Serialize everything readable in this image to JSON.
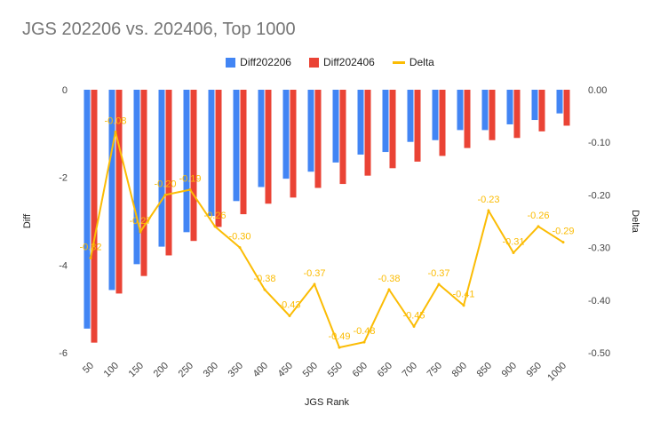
{
  "chart_data": {
    "type": "bar",
    "title": "JGS 202206 vs. 202406, Top 1000",
    "xlabel": "JGS Rank",
    "ylabel": "Diff",
    "y2label": "Delta",
    "ylim": [
      -6,
      0
    ],
    "y2lim": [
      -0.5,
      0
    ],
    "yticks": [
      "0",
      "-2",
      "-4",
      "-6"
    ],
    "y2ticks": [
      "0.00",
      "-0.10",
      "-0.20",
      "-0.30",
      "-0.40",
      "-0.50"
    ],
    "categories": [
      "50",
      "100",
      "150",
      "200",
      "250",
      "300",
      "350",
      "400",
      "450",
      "500",
      "550",
      "600",
      "650",
      "700",
      "750",
      "800",
      "850",
      "900",
      "950",
      "1000"
    ],
    "series": [
      {
        "name": "Diff202206",
        "color": "#4285f4",
        "values": [
          -5.45,
          -4.57,
          -3.98,
          -3.58,
          -3.25,
          -2.88,
          -2.54,
          -2.22,
          -2.03,
          -1.87,
          -1.66,
          -1.48,
          -1.42,
          -1.19,
          -1.15,
          -0.92,
          -0.92,
          -0.79,
          -0.69,
          -0.54
        ]
      },
      {
        "name": "Diff202406",
        "color": "#ea4335",
        "values": [
          -5.77,
          -4.65,
          -4.25,
          -3.78,
          -3.45,
          -3.13,
          -2.84,
          -2.6,
          -2.46,
          -2.24,
          -2.15,
          -1.96,
          -1.79,
          -1.64,
          -1.51,
          -1.33,
          -1.15,
          -1.1,
          -0.95,
          -0.82
        ]
      },
      {
        "name": "Delta",
        "color": "#fbbc04",
        "type": "line",
        "axis": "right",
        "values": [
          -0.32,
          -0.08,
          -0.27,
          -0.2,
          -0.19,
          -0.26,
          -0.3,
          -0.38,
          -0.43,
          -0.37,
          -0.49,
          -0.48,
          -0.38,
          -0.45,
          -0.37,
          -0.41,
          -0.23,
          -0.31,
          -0.26,
          -0.29
        ],
        "labels": [
          "-0.32",
          "-0.08",
          "-0.27",
          "-0.20",
          "-0.19",
          "-0.26",
          "-0.30",
          "-0.38",
          "-0.43",
          "-0.37",
          "-0.49",
          "-0.48",
          "-0.38",
          "-0.45",
          "-0.37",
          "-0.41",
          "-0.23",
          "-0.31",
          "-0.26",
          "-0.29"
        ]
      }
    ],
    "legend": "top",
    "grid": false
  }
}
